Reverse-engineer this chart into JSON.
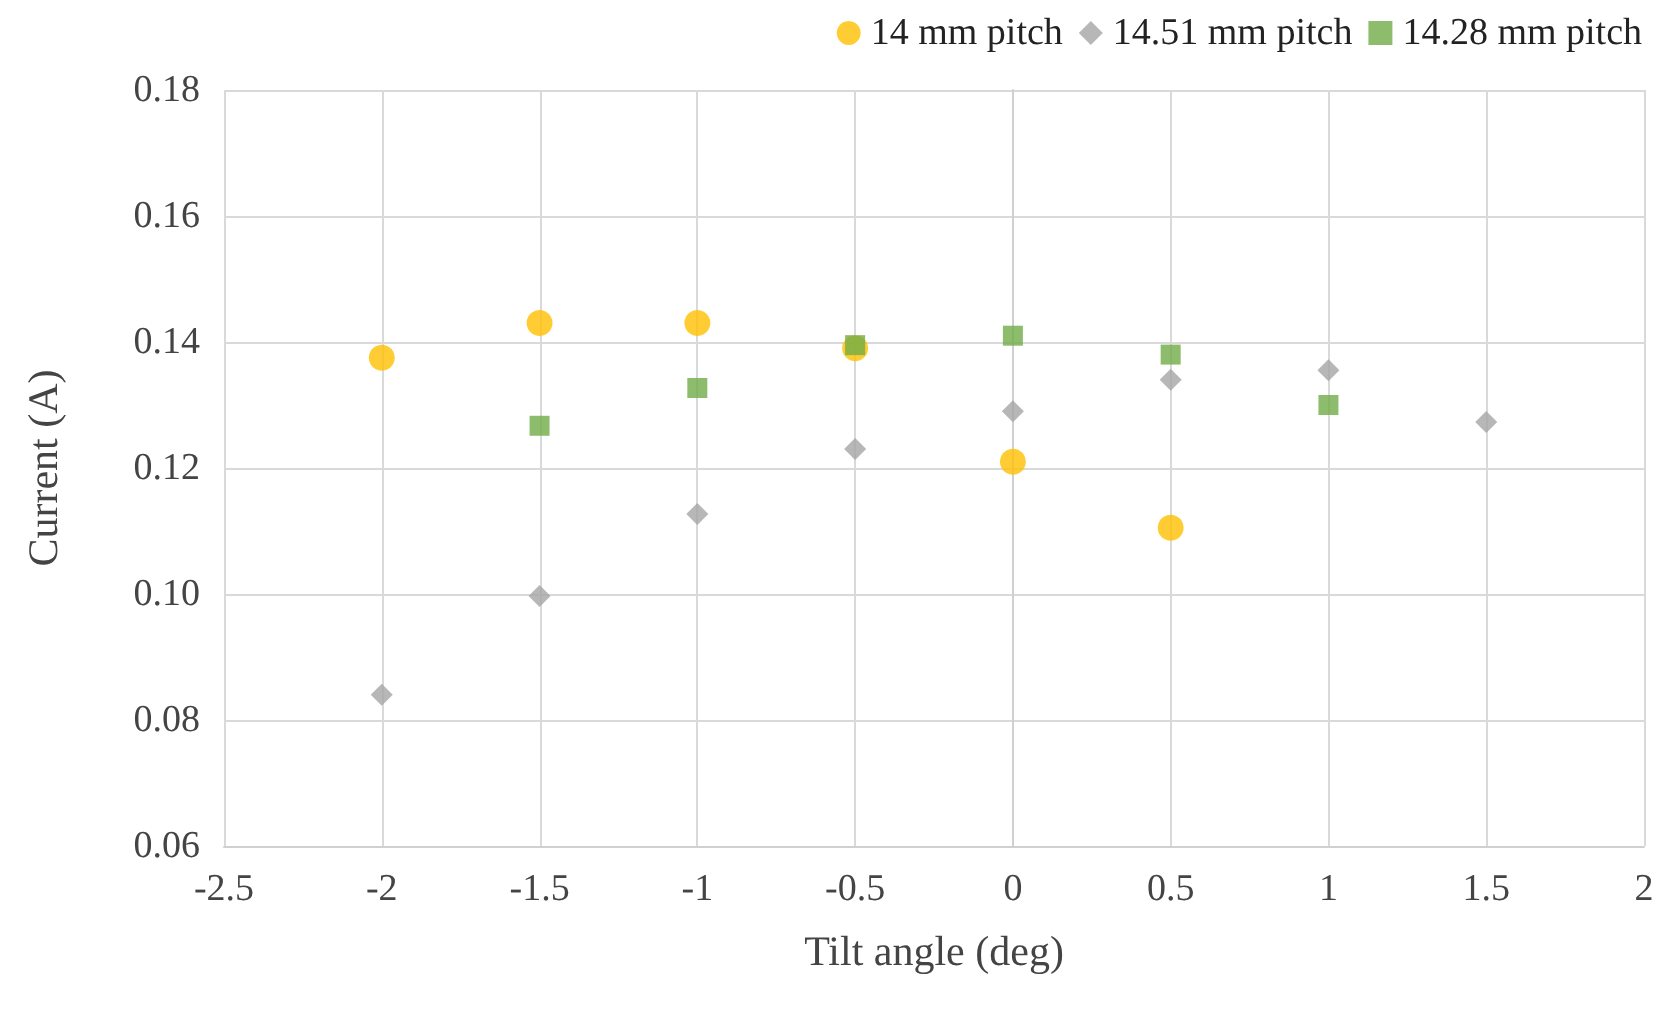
{
  "chart_data": {
    "type": "scatter",
    "xlabel": "Tilt angle (deg)",
    "ylabel": "Current (A)",
    "xlim": [
      -2.5,
      2
    ],
    "xticks": [
      -2.5,
      -2,
      -1.5,
      -1,
      -0.5,
      0,
      0.5,
      1,
      1.5,
      2
    ],
    "ylim": [
      0.06,
      0.18
    ],
    "yticks": [
      0.06,
      0.08,
      {
        "value": 0.1,
        "label": "0.10"
      },
      0.12,
      0.14,
      0.16,
      0.18
    ],
    "grid": true,
    "legend": "top right",
    "series": [
      {
        "name": "14 mm pitch",
        "color": "#ffc000",
        "marker": "circle",
        "x": [
          -2,
          -1.5,
          -1,
          -0.5,
          0,
          0.5
        ],
        "values": [
          0.1375,
          0.143,
          0.143,
          0.139,
          0.121,
          0.1105
        ]
      },
      {
        "name": "14.51 mm pitch",
        "color": "#a5a5a5",
        "marker": "diamond",
        "x": [
          -2,
          -1.5,
          -1,
          -0.5,
          0,
          0.5,
          1,
          1.5
        ],
        "values": [
          0.084,
          0.0997,
          0.1127,
          0.123,
          0.129,
          0.134,
          0.1355,
          0.1273
        ]
      },
      {
        "name": "14.28 mm pitch",
        "color": "#70ad47",
        "marker": "square",
        "x": [
          -1.5,
          -1,
          -0.5,
          0,
          0.5,
          1
        ],
        "values": [
          0.1267,
          0.1327,
          0.1395,
          0.141,
          0.138,
          0.13
        ]
      }
    ]
  }
}
